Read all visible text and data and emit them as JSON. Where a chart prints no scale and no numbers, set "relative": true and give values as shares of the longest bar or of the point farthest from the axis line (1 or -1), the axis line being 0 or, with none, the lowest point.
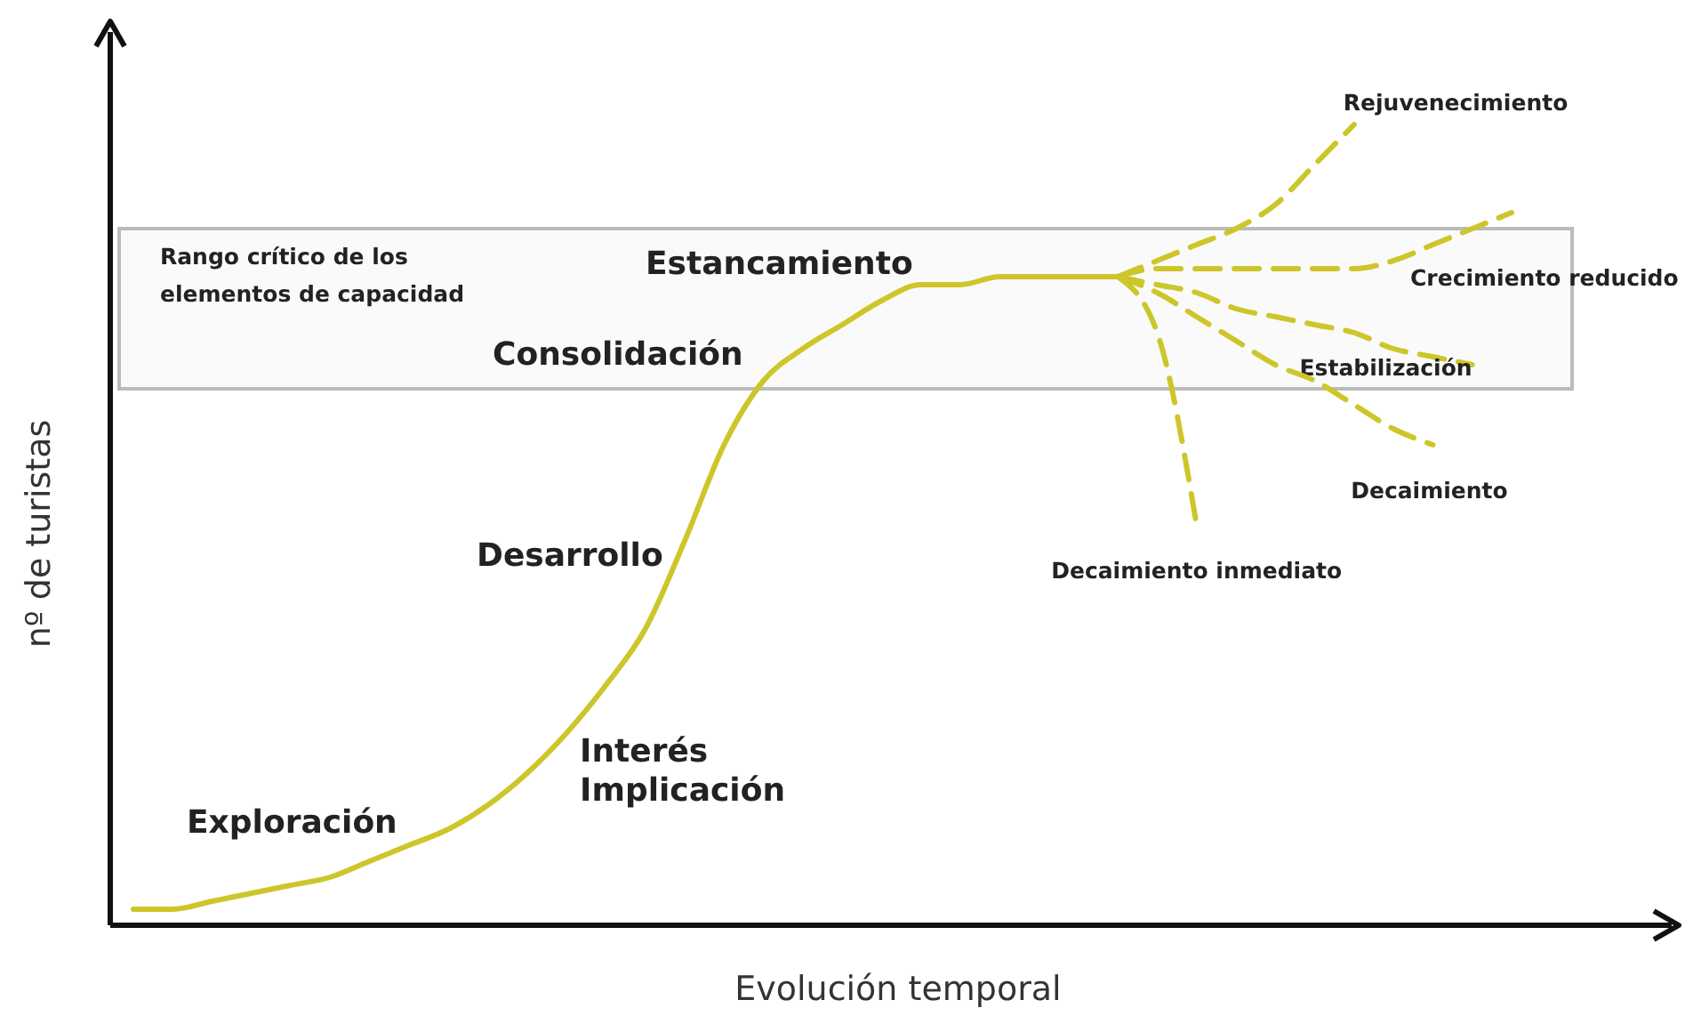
{
  "chart_data": {
    "type": "line",
    "relative": true,
    "xlabel": "Evolución temporal",
    "ylabel": "nº de turistas",
    "marker": "none",
    "categories": [
      null,
      null,
      null,
      null,
      null,
      null,
      null,
      null,
      null,
      null,
      null,
      null,
      null,
      null,
      null,
      null,
      null,
      null,
      null,
      null,
      null,
      null,
      null,
      null,
      null,
      null,
      null,
      null,
      null,
      null,
      null,
      null,
      null,
      null,
      null,
      null
    ],
    "series": [
      {
        "color": "#cdc62b",
        "line_style": "solid",
        "values": [
          0.02,
          0.02,
          0.03,
          0.04,
          0.05,
          0.06,
          0.08,
          0.1,
          0.12,
          0.15,
          0.19,
          0.24,
          0.3,
          0.37,
          0.48,
          0.6,
          0.68,
          0.72,
          0.75,
          0.78,
          0.8,
          0.8,
          0.81,
          0.81,
          0.81,
          0.81,
          null,
          null,
          null,
          null,
          null,
          null,
          null,
          null,
          null,
          null
        ]
      },
      {
        "name": "Rejuvenecimiento",
        "color": "#cdc62b",
        "line_style": "dashed",
        "values": [
          null,
          null,
          null,
          null,
          null,
          null,
          null,
          null,
          null,
          null,
          null,
          null,
          null,
          null,
          null,
          null,
          null,
          null,
          null,
          null,
          null,
          null,
          null,
          null,
          null,
          0.81,
          0.83,
          0.85,
          0.87,
          0.9,
          0.95,
          1.0,
          null,
          null,
          null,
          null
        ]
      },
      {
        "name": "Crecimiento reducido",
        "color": "#cdc62b",
        "line_style": "dashed",
        "values": [
          null,
          null,
          null,
          null,
          null,
          null,
          null,
          null,
          null,
          null,
          null,
          null,
          null,
          null,
          null,
          null,
          null,
          null,
          null,
          null,
          null,
          null,
          null,
          null,
          null,
          0.81,
          0.82,
          0.82,
          0.82,
          0.82,
          0.82,
          0.82,
          0.83,
          0.85,
          0.87,
          0.89
        ]
      },
      {
        "name": "Estabilización",
        "color": "#cdc62b",
        "line_style": "dashed",
        "values": [
          null,
          null,
          null,
          null,
          null,
          null,
          null,
          null,
          null,
          null,
          null,
          null,
          null,
          null,
          null,
          null,
          null,
          null,
          null,
          null,
          null,
          null,
          null,
          null,
          null,
          0.81,
          0.8,
          0.79,
          0.77,
          0.76,
          0.75,
          0.74,
          0.72,
          0.71,
          0.7,
          null
        ]
      },
      {
        "name": "Decaimiento",
        "color": "#cdc62b",
        "line_style": "dashed",
        "values": [
          null,
          null,
          null,
          null,
          null,
          null,
          null,
          null,
          null,
          null,
          null,
          null,
          null,
          null,
          null,
          null,
          null,
          null,
          null,
          null,
          null,
          null,
          null,
          null,
          null,
          0.81,
          0.79,
          0.76,
          0.73,
          0.7,
          0.68,
          0.65,
          0.62,
          0.6,
          null,
          null
        ]
      },
      {
        "name": "Decaimiento inmediato",
        "color": "#cdc62b",
        "line_style": "dashed",
        "values": [
          null,
          null,
          null,
          null,
          null,
          null,
          null,
          null,
          null,
          null,
          null,
          null,
          null,
          null,
          null,
          null,
          null,
          null,
          null,
          null,
          null,
          null,
          null,
          null,
          null,
          0.81,
          0.74,
          0.5,
          null,
          null,
          null,
          null,
          null,
          null,
          null,
          null
        ]
      }
    ],
    "bands": [
      {
        "axis": "y",
        "from": 0.67,
        "to": 0.87,
        "label": "Rango crítico de los\nelementos de capacidad",
        "color": "#bbbbbb"
      }
    ],
    "annotations": [
      "Exploración",
      "Interés\nImplicación",
      "Desarrollo",
      "Consolidación",
      "Estancamiento"
    ]
  }
}
